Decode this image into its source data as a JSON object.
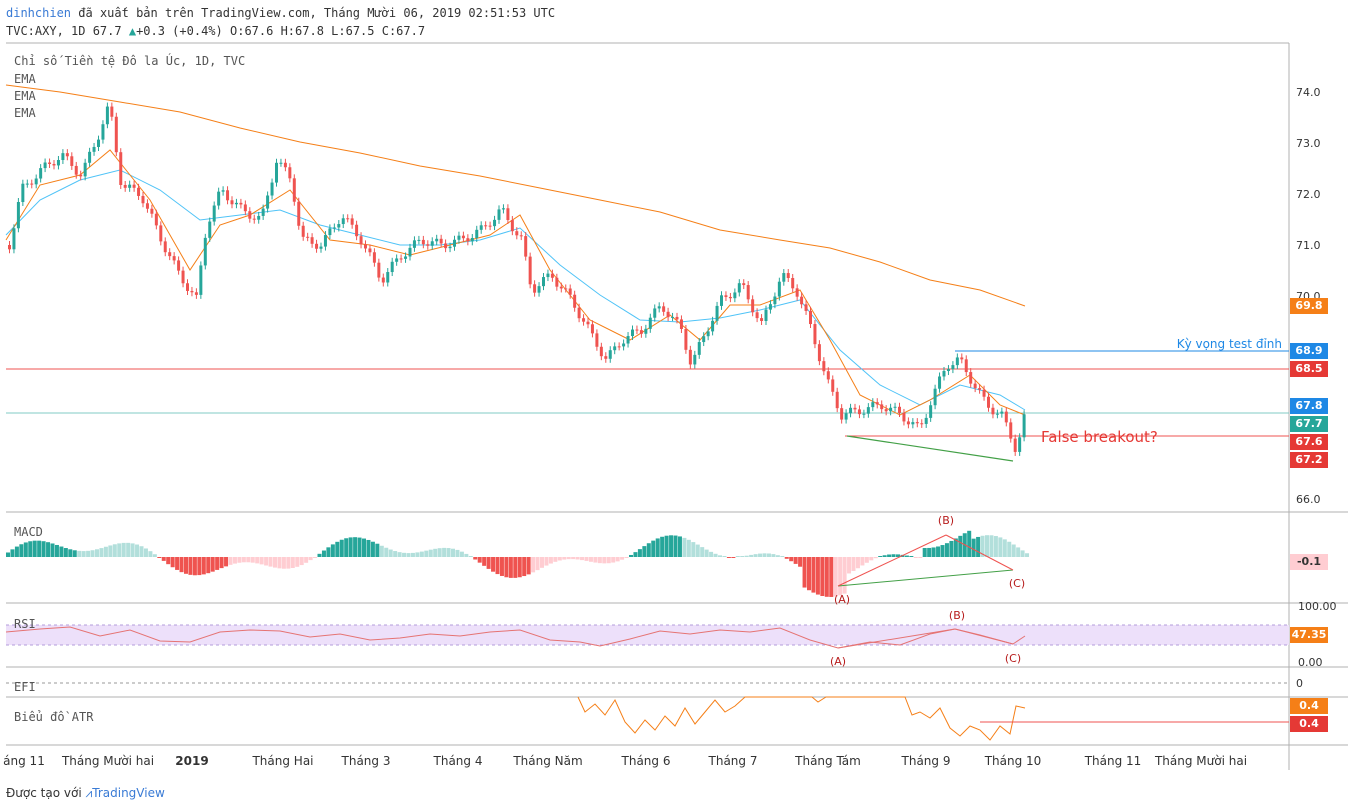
{
  "header": {
    "author": "dinhchien",
    "published_text": "đã xuất bản trên TradingView.com, Tháng Mười 06, 2019 02:51:53 UTC",
    "ticker_line": "TVC:AXY, 1D 67.7",
    "change": "+0.3 (+0.4%)",
    "ohlc": "O:67.6 H:67.8 L:67.5 C:67.7"
  },
  "main_pane": {
    "title": "Chỉ số Tiền tệ Đô la Úc, 1D, TVC",
    "indicators": [
      "EMA",
      "EMA",
      "EMA"
    ],
    "annotation_expect_top": "Kỳ vọng test đỉnh",
    "annotation_false_breakout": "False breakout?",
    "y_ticks": [
      "74.0",
      "73.0",
      "72.0",
      "71.0",
      "70.0",
      "66.0"
    ],
    "badges": [
      {
        "label": "69.8",
        "color": "#f57f17"
      },
      {
        "label": "68.9",
        "color": "#1e88e5"
      },
      {
        "label": "68.5",
        "color": "#e53935"
      },
      {
        "label": "67.8",
        "color": "#1e88e5"
      },
      {
        "label": "67.7",
        "color": "#26a69a"
      },
      {
        "label": "67.6",
        "color": "#e53935"
      },
      {
        "label": "67.2",
        "color": "#e53935"
      }
    ]
  },
  "macd_pane": {
    "label": "MACD",
    "value_badge": "-0.1",
    "points": [
      "(A)",
      "(B)",
      "(C)"
    ]
  },
  "rsi_pane": {
    "label": "RSI",
    "y_ticks": [
      "100.00",
      "0.00"
    ],
    "value_badge": "47.35",
    "points": [
      "(A)",
      "(B)",
      "(C)"
    ]
  },
  "efi_pane": {
    "label": "EFI",
    "y_tick": "0"
  },
  "atr_pane": {
    "label": "Biểu đồ ATR",
    "value_badges": [
      "0.4",
      "0.4"
    ]
  },
  "x_axis": {
    "labels": [
      "áng 11",
      "Tháng Mười hai",
      "2019",
      "Tháng Hai",
      "Tháng 3",
      "Tháng 4",
      "Tháng Năm",
      "Tháng 6",
      "Tháng 7",
      "Tháng Tám",
      "Tháng 9",
      "Tháng 10",
      "Tháng 11",
      "Tháng Mười hai"
    ]
  },
  "footer": {
    "text": "Được tạo với",
    "brand": "TradingView"
  },
  "colors": {
    "up": "#26a69a",
    "down": "#ef5350",
    "ema_fast": "#f57f17",
    "ema_mid": "#4fc3f7",
    "ema_slow": "#f57f17",
    "rsi_band": "#e6d7f7"
  }
}
